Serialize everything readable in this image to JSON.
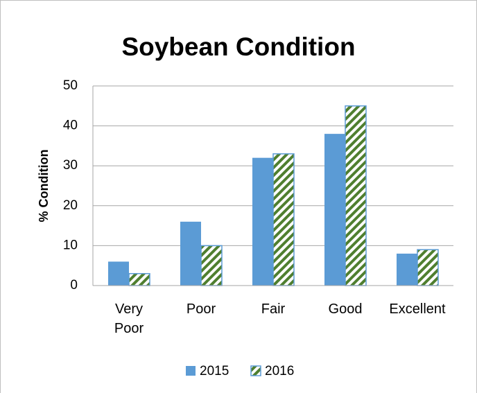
{
  "chart_data": {
    "type": "bar",
    "title": "Soybean Condition",
    "y_label": "% Condition",
    "categories": [
      "Very Poor",
      "Poor",
      "Fair",
      "Good",
      "Excellent"
    ],
    "series": [
      {
        "name": "2015",
        "color": "#5b9bd5",
        "values": [
          6,
          16,
          32,
          38,
          8
        ]
      },
      {
        "name": "2016",
        "color": "#4f7f2f",
        "hatch": true,
        "values": [
          3,
          10,
          33,
          45,
          9
        ]
      }
    ],
    "ylim": [
      0,
      50
    ],
    "yticks": [
      0,
      10,
      20,
      30,
      40,
      50
    ],
    "grid": true,
    "legend": "bottom"
  }
}
